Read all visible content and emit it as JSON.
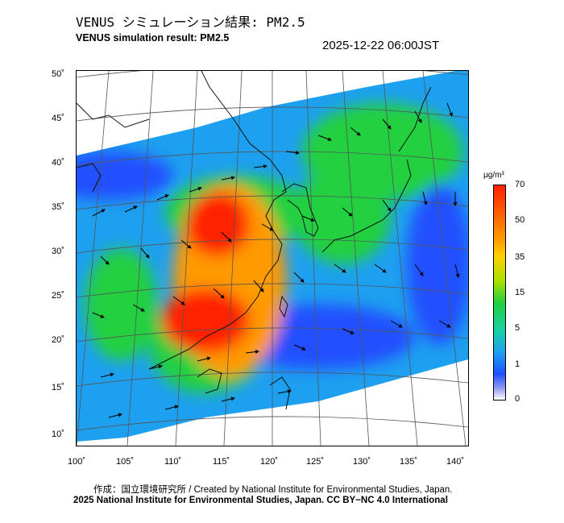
{
  "header": {
    "title_jp": "VENUS シミュレーション結果: PM2.5",
    "title_en": "VENUS simulation result: PM2.5",
    "timestamp": "2025-12-22 06:00JST"
  },
  "map": {
    "lat_labels": [
      "50˚",
      "45˚",
      "40˚",
      "35˚",
      "30˚",
      "25˚",
      "20˚",
      "15˚",
      "10˚"
    ],
    "lon_labels": [
      "100˚",
      "105˚",
      "110˚",
      "115˚",
      "120˚",
      "125˚",
      "130˚",
      "135˚",
      "140˚"
    ],
    "colors": {
      "very_high": "#ff2000",
      "high": "#ff9a00",
      "medium": "#22d040",
      "low": "#1ea0f0",
      "very_low": "#2050ff",
      "clean": "#ffffff"
    }
  },
  "colorbar": {
    "unit": "µg/m³",
    "labels": [
      "70",
      "50",
      "35",
      "15",
      "5",
      "1",
      "0"
    ]
  },
  "footer": {
    "credit": "作成：国立環境研究所 / Created by National Institute for Environmental Studies, Japan.",
    "copyright": "2025 National Institute for Environmental Studies, Japan. CC BY−NC 4.0 International"
  }
}
